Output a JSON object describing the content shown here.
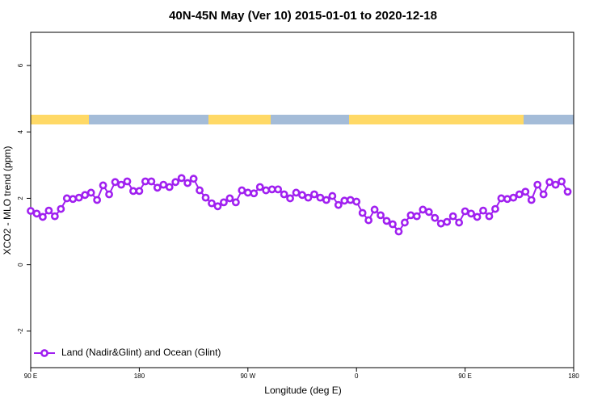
{
  "chart_data": {
    "type": "line",
    "title": "40N-45N May (Ver 10)   2015-01-01 to 2020-12-18",
    "xlabel": "Longitude (deg E)",
    "ylabel": "XCO2 - MLO trend (ppm)",
    "xlim": [
      90,
      540
    ],
    "ylim": [
      -3.1,
      7
    ],
    "xticks": [
      {
        "value": 90,
        "label": "90 E"
      },
      {
        "value": 180,
        "label": "180"
      },
      {
        "value": 270,
        "label": "90 W"
      },
      {
        "value": 360,
        "label": "0"
      },
      {
        "value": 450,
        "label": "90 E"
      },
      {
        "value": 540,
        "label": "180"
      }
    ],
    "yticks": [
      -2,
      0,
      2,
      4,
      6
    ],
    "legend": "bottom-left",
    "x": [
      90,
      95,
      100,
      105,
      110,
      115,
      120,
      125,
      130,
      135,
      140,
      145,
      150,
      155,
      160,
      165,
      170,
      175,
      180,
      185,
      190,
      195,
      200,
      205,
      210,
      215,
      220,
      225,
      230,
      235,
      240,
      245,
      250,
      255,
      260,
      265,
      270,
      275,
      280,
      285,
      290,
      295,
      300,
      305,
      310,
      315,
      320,
      325,
      330,
      335,
      340,
      345,
      350,
      355,
      360,
      365,
      370,
      375,
      380,
      385,
      390,
      395,
      400,
      405,
      410,
      415,
      420,
      425,
      430,
      435,
      440,
      445,
      450,
      455,
      460,
      465,
      470,
      475,
      480,
      485,
      490,
      495,
      500,
      505,
      510,
      515,
      520,
      525,
      530,
      535
    ],
    "series": [
      {
        "name": "Land (Nadir&Glint) and Ocean (Glint)",
        "color": "#a020f0",
        "values": [
          1.62,
          1.54,
          1.44,
          1.63,
          1.46,
          1.68,
          2.0,
          1.98,
          2.02,
          2.1,
          2.17,
          1.95,
          2.39,
          2.12,
          2.49,
          2.41,
          2.51,
          2.22,
          2.22,
          2.51,
          2.51,
          2.32,
          2.41,
          2.34,
          2.49,
          2.61,
          2.46,
          2.59,
          2.24,
          2.02,
          1.85,
          1.76,
          1.88,
          2.0,
          1.88,
          2.24,
          2.17,
          2.15,
          2.34,
          2.24,
          2.27,
          2.27,
          2.12,
          2.0,
          2.17,
          2.1,
          2.02,
          2.12,
          2.02,
          1.95,
          2.07,
          1.8,
          1.93,
          1.95,
          1.9,
          1.56,
          1.34,
          1.66,
          1.49,
          1.32,
          1.22,
          1.0,
          1.27,
          1.49,
          1.46,
          1.66,
          1.59,
          1.41,
          1.24,
          1.29,
          1.46,
          1.27,
          1.61,
          1.54,
          1.44,
          1.63,
          1.46,
          1.68,
          2.0,
          1.98,
          2.02,
          2.12,
          2.2,
          1.95,
          2.41,
          2.12,
          2.49,
          2.41,
          2.51,
          2.2
        ]
      }
    ]
  }
}
